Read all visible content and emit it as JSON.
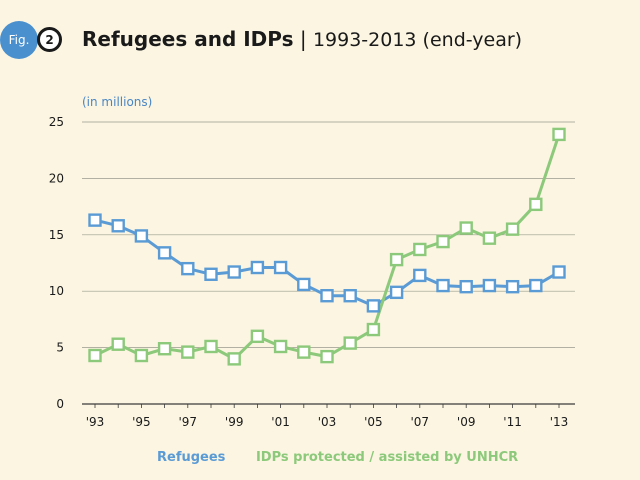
{
  "figure": {
    "tag": "Fig.",
    "number": "2"
  },
  "title": {
    "main": "Refugees and IDPs",
    "separator": "|",
    "sub": "1993-2013 (end-year)"
  },
  "colors": {
    "background": "#fbf5e2",
    "refugees": "#5b9bd5",
    "idps": "#8cc97a",
    "grid": "#9a9a8c",
    "text": "#1a1a1a",
    "unit": "#4a86c5"
  },
  "chart_data": {
    "type": "line",
    "unit_label": "(in millions)",
    "ylim": [
      0,
      25
    ],
    "yticks": [
      0,
      5,
      10,
      15,
      20,
      25
    ],
    "x": [
      1993,
      1994,
      1995,
      1996,
      1997,
      1998,
      1999,
      2000,
      2001,
      2002,
      2003,
      2004,
      2005,
      2006,
      2007,
      2008,
      2009,
      2010,
      2011,
      2012,
      2013
    ],
    "xtick_labels": [
      "'93",
      "'95",
      "'97",
      "'99",
      "'01",
      "'03",
      "'05",
      "'07",
      "'09",
      "'11",
      "'13"
    ],
    "xtick_years": [
      1993,
      1995,
      1997,
      1999,
      2001,
      2003,
      2005,
      2007,
      2009,
      2011,
      2013
    ],
    "grid": true,
    "series": [
      {
        "name": "Refugees",
        "color": "#5b9bd5",
        "values": [
          16.3,
          15.8,
          14.9,
          13.4,
          12.0,
          11.5,
          11.7,
          12.1,
          12.1,
          10.6,
          9.6,
          9.6,
          8.7,
          9.9,
          11.4,
          10.5,
          10.4,
          10.5,
          10.4,
          10.5,
          11.7
        ]
      },
      {
        "name": "IDPs protected / assisted by UNHCR",
        "color": "#8cc97a",
        "values": [
          4.3,
          5.3,
          4.3,
          4.9,
          4.6,
          5.1,
          4.0,
          6.0,
          5.1,
          4.6,
          4.2,
          5.4,
          6.6,
          12.8,
          13.7,
          14.4,
          15.6,
          14.7,
          15.5,
          17.7,
          23.9
        ]
      }
    ]
  }
}
